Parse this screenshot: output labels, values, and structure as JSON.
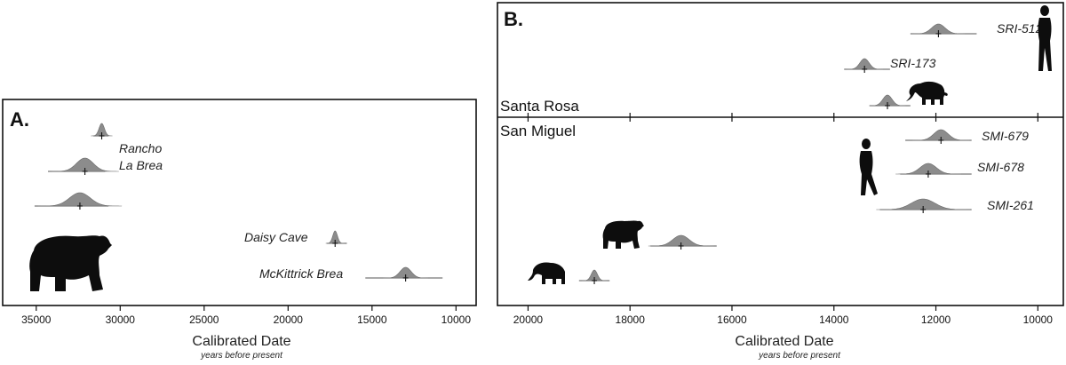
{
  "chart_data": [
    {
      "type": "area",
      "panel_label": "A.",
      "xlabel": "Calibrated Date",
      "xlabel_sub": "years before present",
      "xlim": [
        37000,
        8800
      ],
      "ticks": [
        35000,
        30000,
        25000,
        20000,
        15000,
        10000
      ],
      "tick_labels": [
        "35000",
        "30000",
        "25000",
        "20000",
        "15000",
        "10000"
      ],
      "labels": [
        {
          "id": "rancho",
          "text": "Rancho"
        },
        {
          "id": "labrea",
          "text": "La Brea"
        },
        {
          "id": "daisy",
          "text": "Daisy Cave"
        },
        {
          "id": "mck",
          "text": "McKittrick Brea"
        }
      ],
      "series": [
        {
          "name": "Rancho La Brea",
          "median": 31100,
          "range": [
            31600,
            30700
          ],
          "spread": 160,
          "height": 14
        },
        {
          "name": "Rancho La Brea",
          "median": 32100,
          "range": [
            34300,
            30900
          ],
          "spread": 500,
          "height": 15
        },
        {
          "name": "Rancho La Brea",
          "median": 32400,
          "range": [
            35100,
            30700
          ],
          "spread": 620,
          "height": 15
        },
        {
          "name": "Daisy Cave",
          "median": 17200,
          "range": [
            17700,
            16500
          ],
          "spread": 140,
          "height": 14
        },
        {
          "name": "McKittrick Brea",
          "median": 13000,
          "range": [
            15400,
            10800
          ],
          "spread": 330,
          "height": 12
        }
      ]
    },
    {
      "type": "area",
      "panel_label": "B.",
      "xlabel": "Calibrated Date",
      "xlabel_sub": "years before present",
      "xlim": [
        20600,
        9500
      ],
      "ticks": [
        20000,
        18000,
        16000,
        14000,
        12000,
        10000
      ],
      "tick_labels": [
        "20000",
        "18000",
        "16000",
        "14000",
        "12000",
        "10000"
      ],
      "regions": [
        {
          "id": "santa-rosa",
          "name": "Santa Rosa"
        },
        {
          "id": "san-miguel",
          "name": "San Miguel"
        }
      ],
      "series": [
        {
          "name": "SRI-512",
          "region": "santa-rosa",
          "median": 11950,
          "range": [
            12500,
            11200
          ],
          "spread": 130,
          "height": 11
        },
        {
          "name": "SRI-173",
          "region": "santa-rosa",
          "median": 13400,
          "range": [
            13800,
            12900
          ],
          "spread": 90,
          "height": 12
        },
        {
          "name": "",
          "region": "santa-rosa",
          "median": 12950,
          "range": [
            13300,
            12500
          ],
          "spread": 90,
          "height": 12
        },
        {
          "name": "SMI-679",
          "region": "san-miguel",
          "median": 11900,
          "range": [
            12600,
            11300
          ],
          "spread": 140,
          "height": 12
        },
        {
          "name": "SMI-678",
          "region": "san-miguel",
          "median": 12150,
          "range": [
            12700,
            11300
          ],
          "spread": 160,
          "height": 12
        },
        {
          "name": "SMI-261",
          "region": "san-miguel",
          "median": 12250,
          "range": [
            13100,
            11300
          ],
          "spread": 230,
          "height": 12
        },
        {
          "name": "",
          "region": "san-miguel",
          "median": 17000,
          "range": [
            17600,
            16300
          ],
          "spread": 160,
          "height": 12
        },
        {
          "name": "",
          "region": "san-miguel",
          "median": 18700,
          "range": [
            19000,
            18400
          ],
          "spread": 60,
          "height": 12
        }
      ]
    }
  ],
  "icons": [
    "short-faced-bear-icon",
    "human-icon",
    "mammoth-icon"
  ]
}
